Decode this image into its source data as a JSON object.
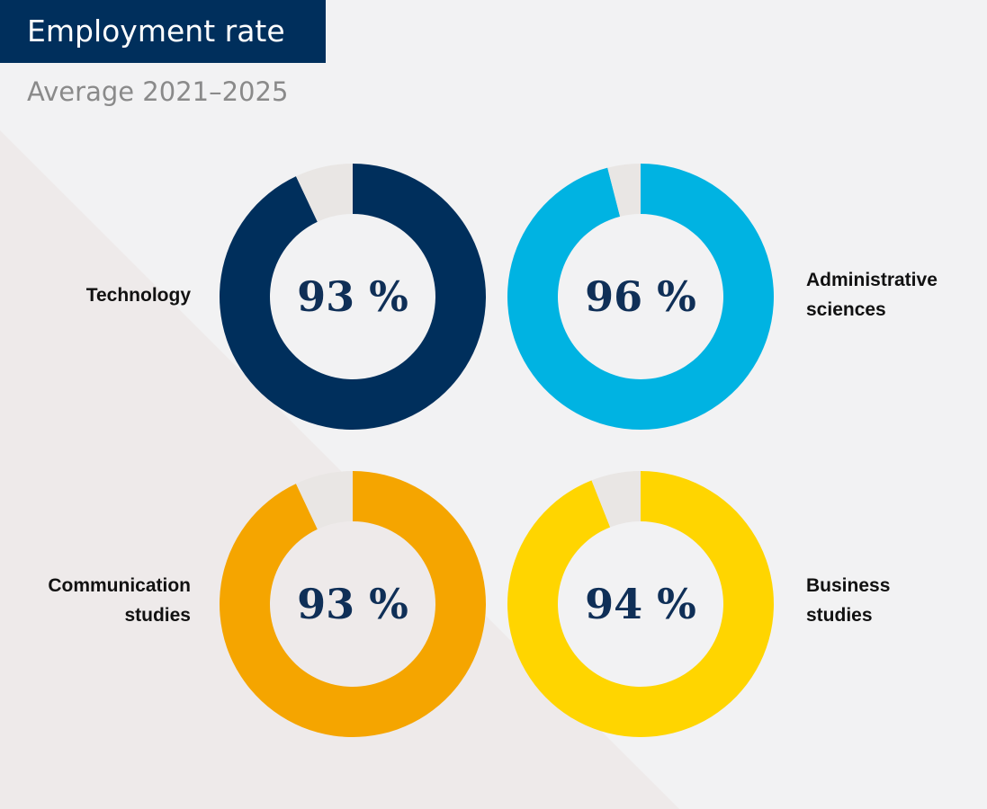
{
  "header": {
    "title": "Employment rate",
    "subtitle": "Average 2021–2025"
  },
  "colors": {
    "background": "#f2f2f3",
    "background_shade": "#eeeaea",
    "title_bg": "#002f5c",
    "remainder": "#e9e6e4",
    "value_text": "#0f2f57"
  },
  "chart_data": {
    "type": "pie",
    "variant": "donut",
    "title": "Employment rate",
    "subtitle": "Average 2021–2025",
    "unit": "%",
    "series": [
      {
        "name": "Technology",
        "label_lines": [
          "Technology"
        ],
        "value": 93,
        "display": "93 %",
        "color": "#002f5c",
        "label_side": "left"
      },
      {
        "name": "Administrative sciences",
        "label_lines": [
          "Administrative",
          "sciences"
        ],
        "value": 96,
        "display": "96 %",
        "color": "#00b3e2",
        "label_side": "right"
      },
      {
        "name": "Communication studies",
        "label_lines": [
          "Communication",
          "studies"
        ],
        "value": 93,
        "display": "93 %",
        "color": "#f5a500",
        "label_side": "left"
      },
      {
        "name": "Business studies",
        "label_lines": [
          "Business",
          "studies"
        ],
        "value": 94,
        "display": "94 %",
        "color": "#ffd500",
        "label_side": "right"
      }
    ]
  }
}
